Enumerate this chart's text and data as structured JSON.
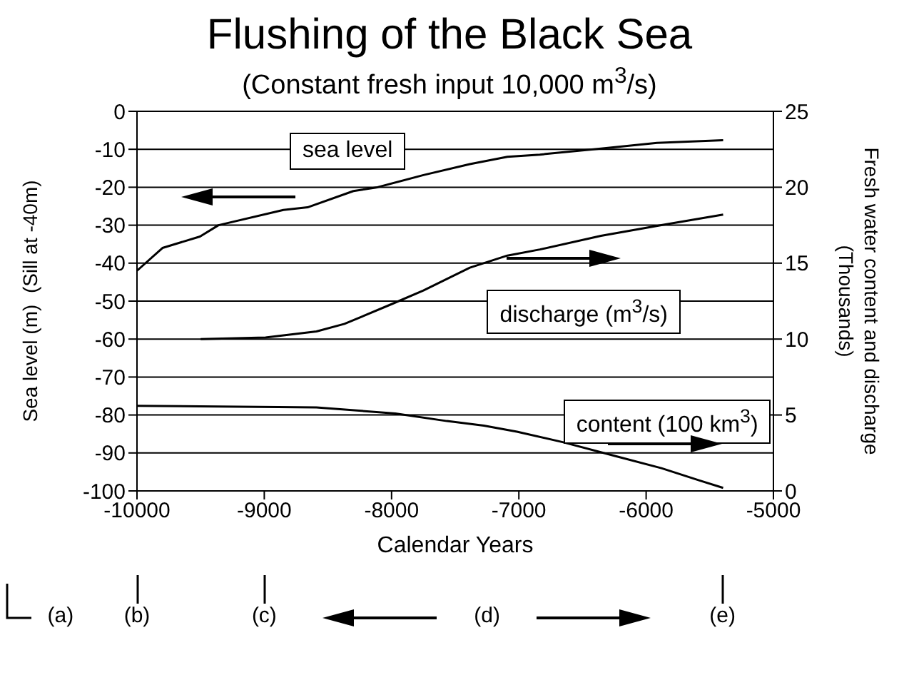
{
  "chart_data": {
    "type": "line",
    "title": "Flushing of the Black Sea",
    "subtitle": "(Constant fresh input 10,000 m$^{3}$/s)",
    "xlabel": "Calendar Years",
    "ylabel": "Sea level (m)  (Sill at -40m)",
    "y2label": "Fresh water content and discharge (Thousands)",
    "xlim": [
      -10000,
      -5000
    ],
    "xticks": [
      -10000,
      -9000,
      -8000,
      -7000,
      -6000,
      -5000
    ],
    "ylim": [
      -100,
      0
    ],
    "yticks": [
      -100,
      -90,
      -80,
      -70,
      -60,
      -50,
      -40,
      -30,
      -20,
      -10,
      0
    ],
    "y2lim": [
      0,
      25
    ],
    "y2ticks": [
      0,
      5,
      10,
      15,
      20,
      25
    ],
    "grid": "y",
    "marker": "none",
    "line_style": "solid",
    "series": [
      {
        "name": "sea level",
        "color": "#000000",
        "x": [
          -10000,
          -9980,
          -9800,
          -9505,
          -9360,
          -8850,
          -8660,
          -8300,
          -8110,
          -7750,
          -7385,
          -7090,
          -6835,
          -6355,
          -5915,
          -5395
        ],
        "values": [
          -42,
          -41.4,
          -36,
          -33,
          -30,
          -26,
          -25.3,
          -21,
          -20,
          -16.8,
          -13.9,
          -12,
          -11.4,
          -9.8,
          -8.3,
          -7.6
        ]
      },
      {
        "name": "discharge (m$^{3}$/s)",
        "color": "#000000",
        "axis": "y2",
        "x": [
          -9500,
          -8990,
          -8590,
          -8370,
          -8000,
          -7750,
          -7385,
          -7090,
          -6835,
          -6355,
          -5880,
          -5395
        ],
        "values": [
          10,
          10.1,
          10.5,
          11,
          12.3,
          13.2,
          14.7,
          15.5,
          15.9,
          16.8,
          17.5,
          18.2
        ]
      },
      {
        "name": "content (100 km$^{3}$)",
        "color": "#000000",
        "axis": "y2",
        "x": [
          -10000,
          -8590,
          -7970,
          -7565,
          -7275,
          -7015,
          -6650,
          -6245,
          -5880,
          -5585,
          -5395
        ],
        "values": [
          5.6,
          5.5,
          5.1,
          4.6,
          4.3,
          3.9,
          3.2,
          2.3,
          1.5,
          0.7,
          0.2
        ]
      }
    ],
    "annotations": [
      "(a)",
      "(b)",
      "(c)",
      "(d)",
      "(e)"
    ]
  }
}
